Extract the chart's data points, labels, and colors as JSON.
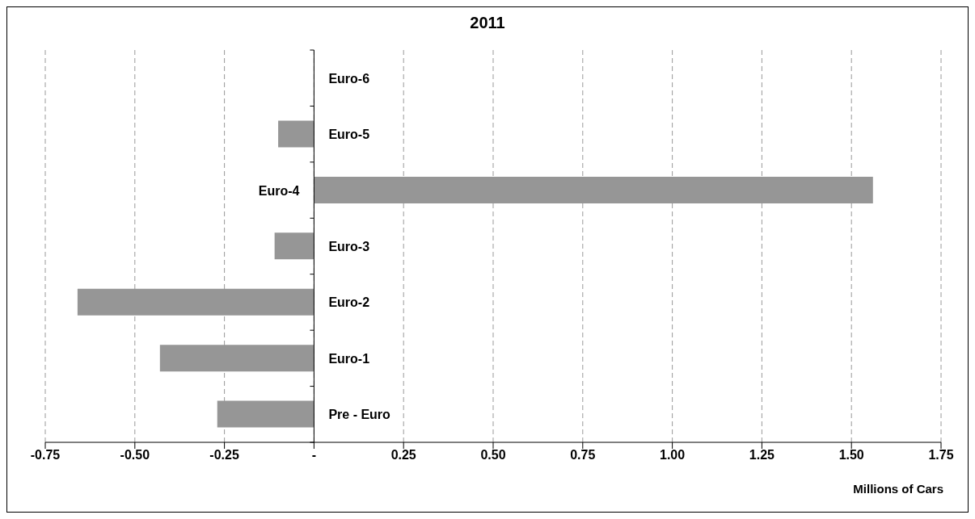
{
  "chart_data": {
    "type": "bar",
    "orientation": "horizontal",
    "title": "2011",
    "xlabel": "Millions of Cars",
    "categories": [
      "Euro-6",
      "Euro-5",
      "Euro-4",
      "Euro-3",
      "Euro-2",
      "Euro-1",
      "Pre - Euro"
    ],
    "values": [
      0,
      -0.1,
      1.56,
      -0.11,
      -0.66,
      -0.43,
      -0.27
    ],
    "color": "#969696",
    "xlim": [
      -0.75,
      1.75
    ],
    "xticks": [
      {
        "value": -0.75,
        "label": "-0.75"
      },
      {
        "value": -0.5,
        "label": "-0.50"
      },
      {
        "value": -0.25,
        "label": "-0.25"
      },
      {
        "value": 0,
        "label": "-"
      },
      {
        "value": 0.25,
        "label": "0.25"
      },
      {
        "value": 0.5,
        "label": "0.50"
      },
      {
        "value": 0.75,
        "label": "0.75"
      },
      {
        "value": 1,
        "label": "1.00"
      },
      {
        "value": 1.25,
        "label": "1.25"
      },
      {
        "value": 1.5,
        "label": "1.50"
      },
      {
        "value": 1.75,
        "label": "1.75"
      }
    ],
    "grid": "x",
    "legend": false
  }
}
